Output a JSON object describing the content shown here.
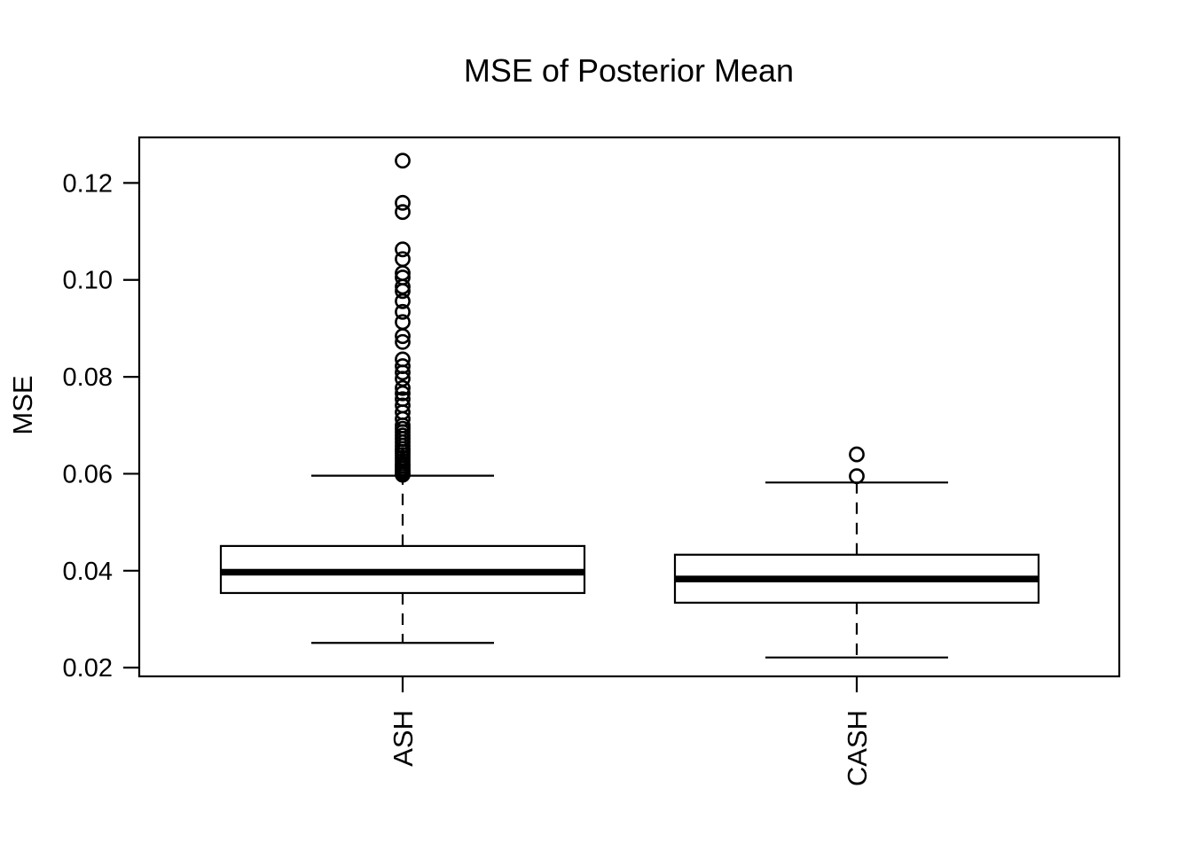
{
  "colors": {
    "foreground": "#000000",
    "background": "#ffffff"
  },
  "chart_data": {
    "type": "boxplot",
    "title": "MSE of Posterior Mean",
    "xlabel": "",
    "ylabel": "MSE",
    "categories": [
      "ASH",
      "CASH"
    ],
    "y_ticks": [
      0.02,
      0.04,
      0.06,
      0.08,
      0.1,
      0.12
    ],
    "y_tick_labels": [
      "0.02",
      "0.04",
      "0.06",
      "0.08",
      "0.10",
      "0.12"
    ],
    "ylim": [
      0.0182,
      0.1294
    ],
    "grid": false,
    "legend": "none",
    "orientation": "vertical",
    "whisker_line_style": "dashed",
    "series": [
      {
        "name": "ASH",
        "lower_whisker": 0.0251,
        "q1": 0.0354,
        "median": 0.0397,
        "q3": 0.0451,
        "upper_whisker": 0.0596,
        "outliers": [
          0.0598,
          0.0602,
          0.0606,
          0.0611,
          0.0616,
          0.0621,
          0.0627,
          0.0633,
          0.0639,
          0.0645,
          0.0651,
          0.0658,
          0.0665,
          0.0672,
          0.0679,
          0.0686,
          0.0693,
          0.07,
          0.0713,
          0.0727,
          0.0741,
          0.0754,
          0.0766,
          0.0777,
          0.0796,
          0.0809,
          0.0822,
          0.0836,
          0.0872,
          0.0884,
          0.0913,
          0.0934,
          0.0956,
          0.0977,
          0.0986,
          0.1005,
          0.1014,
          0.1043,
          0.1063,
          0.114,
          0.1159,
          0.1246
        ]
      },
      {
        "name": "CASH",
        "lower_whisker": 0.0221,
        "q1": 0.0334,
        "median": 0.0383,
        "q3": 0.0433,
        "upper_whisker": 0.0582,
        "outliers": [
          0.0595,
          0.064
        ]
      }
    ]
  }
}
